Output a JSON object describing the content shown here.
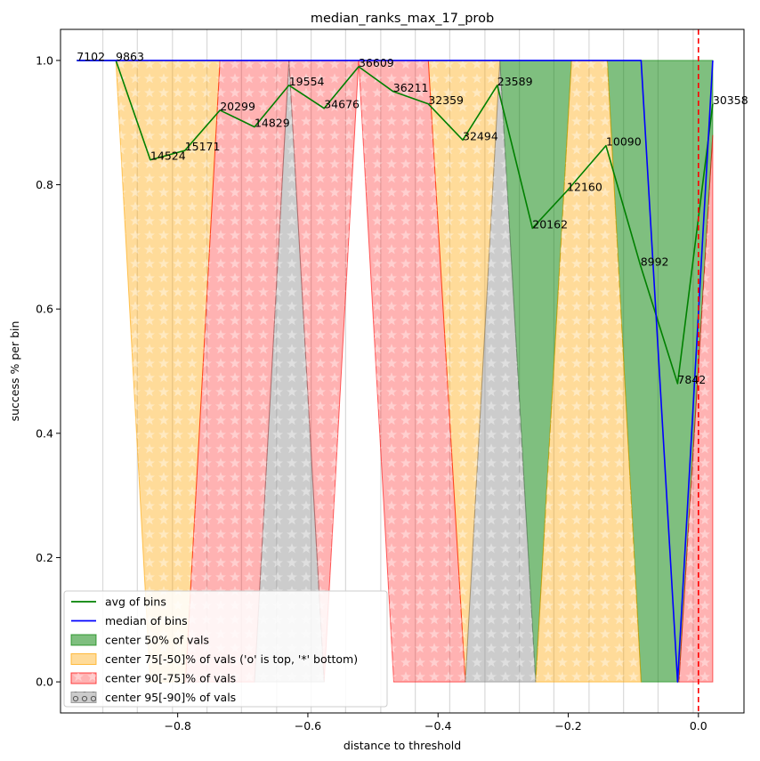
{
  "chart_data": {
    "type": "line",
    "title": "median_ranks_max_17_prob",
    "xlabel": "distance to threshold",
    "ylabel": "success % per bin",
    "xlim": [
      -0.98,
      0.07
    ],
    "ylim": [
      -0.05,
      1.05
    ],
    "x_ticks": [
      -0.8,
      -0.6,
      -0.4,
      -0.2,
      0.0
    ],
    "x_tick_labels": [
      "−0.8",
      "−0.6",
      "−0.4",
      "−0.2",
      "0.0"
    ],
    "y_ticks": [
      0.0,
      0.2,
      0.4,
      0.6,
      0.8,
      1.0
    ],
    "y_tick_labels": [
      "0.0",
      "0.2",
      "0.4",
      "0.6",
      "0.8",
      "1.0"
    ],
    "threshold_x": 0.0,
    "bin_lines_x": [
      -0.915,
      -0.862,
      -0.808,
      -0.755,
      -0.702,
      -0.648,
      -0.595,
      -0.542,
      -0.488,
      -0.435,
      -0.382,
      -0.328,
      -0.275,
      -0.222,
      -0.168,
      -0.115,
      -0.062,
      -0.008
    ],
    "avg_series": {
      "name": "avg of bins",
      "color": "#008000",
      "x": [
        -0.955,
        -0.895,
        -0.842,
        -0.789,
        -0.735,
        -0.682,
        -0.629,
        -0.575,
        -0.522,
        -0.469,
        -0.415,
        -0.362,
        -0.309,
        -0.255,
        -0.202,
        -0.142,
        -0.089,
        -0.032,
        0.022
      ],
      "y": [
        1.0,
        1.0,
        0.84,
        0.855,
        0.92,
        0.893,
        0.96,
        0.923,
        0.99,
        0.95,
        0.93,
        0.872,
        0.96,
        0.73,
        0.79,
        0.863,
        0.67,
        0.48,
        0.93
      ]
    },
    "median_series": {
      "name": "median of bins",
      "color": "#0000ff",
      "x": [
        -0.955,
        -0.088,
        -0.032,
        0.022
      ],
      "y": [
        1.0,
        1.0,
        0.0,
        1.0
      ]
    },
    "point_labels": [
      {
        "x": -0.955,
        "y": 1.0,
        "text": "7102"
      },
      {
        "x": -0.895,
        "y": 1.0,
        "text": "9863"
      },
      {
        "x": -0.842,
        "y": 0.84,
        "text": "14524"
      },
      {
        "x": -0.789,
        "y": 0.855,
        "text": "15171"
      },
      {
        "x": -0.735,
        "y": 0.92,
        "text": "20299"
      },
      {
        "x": -0.682,
        "y": 0.893,
        "text": "14829"
      },
      {
        "x": -0.629,
        "y": 0.96,
        "text": "19554"
      },
      {
        "x": -0.575,
        "y": 0.923,
        "text": "34676"
      },
      {
        "x": -0.522,
        "y": 0.99,
        "text": "36609"
      },
      {
        "x": -0.469,
        "y": 0.95,
        "text": "36211"
      },
      {
        "x": -0.415,
        "y": 0.93,
        "text": "32359"
      },
      {
        "x": -0.362,
        "y": 0.872,
        "text": "32494"
      },
      {
        "x": -0.309,
        "y": 0.96,
        "text": "23589"
      },
      {
        "x": -0.255,
        "y": 0.73,
        "text": "20162"
      },
      {
        "x": -0.202,
        "y": 0.79,
        "text": "12160"
      },
      {
        "x": -0.142,
        "y": 0.863,
        "text": "10090"
      },
      {
        "x": -0.089,
        "y": 0.67,
        "text": "8992"
      },
      {
        "x": -0.032,
        "y": 0.48,
        "text": "7842"
      },
      {
        "x": 0.022,
        "y": 0.93,
        "text": "30358"
      }
    ],
    "bands": [
      {
        "id": "center-50",
        "color": "#008000",
        "alpha": 0.5,
        "hatch": "none",
        "polygons": [
          [
            [
              -0.305,
              1.0
            ],
            [
              -0.195,
              1.0
            ],
            [
              -0.25,
              0.0
            ]
          ],
          [
            [
              -0.14,
              1.0
            ],
            [
              0.022,
              1.0
            ],
            [
              0.022,
              0.88
            ],
            [
              -0.03,
              0.0
            ],
            [
              -0.088,
              0.0
            ]
          ]
        ]
      },
      {
        "id": "center-75",
        "color": "#ffa500",
        "alpha": 0.4,
        "hatch": "star",
        "polygons": [
          [
            [
              -0.895,
              1.0
            ],
            [
              -0.735,
              1.0
            ],
            [
              -0.788,
              0.0
            ],
            [
              -0.842,
              0.0
            ]
          ],
          [
            [
              -0.415,
              1.0
            ],
            [
              -0.305,
              1.0
            ],
            [
              -0.358,
              0.0
            ]
          ],
          [
            [
              -0.195,
              1.0
            ],
            [
              -0.14,
              1.0
            ],
            [
              -0.088,
              0.0
            ],
            [
              -0.25,
              0.0
            ]
          ]
        ]
      },
      {
        "id": "center-90",
        "color": "#ff0000",
        "alpha": 0.3,
        "hatch": "star",
        "polygons": [
          [
            [
              -0.735,
              1.0
            ],
            [
              -0.629,
              1.0
            ],
            [
              -0.682,
              0.0
            ],
            [
              -0.788,
              0.0
            ]
          ],
          [
            [
              -0.629,
              1.0
            ],
            [
              -0.522,
              1.0
            ],
            [
              -0.575,
              0.0
            ]
          ],
          [
            [
              -0.522,
              1.0
            ],
            [
              -0.415,
              1.0
            ],
            [
              -0.358,
              0.0
            ],
            [
              -0.468,
              0.0
            ]
          ],
          [
            [
              0.022,
              0.88
            ],
            [
              0.022,
              0.0
            ],
            [
              -0.03,
              0.0
            ]
          ]
        ]
      },
      {
        "id": "center-95",
        "color": "#808080",
        "alpha": 0.4,
        "hatch": "star",
        "polygons": [
          [
            [
              -0.629,
              1.0
            ],
            [
              -0.682,
              0.0
            ],
            [
              -0.575,
              0.0
            ]
          ],
          [
            [
              -0.305,
              1.0
            ],
            [
              -0.358,
              0.0
            ],
            [
              -0.25,
              0.0
            ]
          ]
        ]
      }
    ],
    "legend": {
      "position": "lower-left",
      "entries": [
        {
          "label": "avg of bins",
          "kind": "line",
          "color": "#008000"
        },
        {
          "label": "median of bins",
          "kind": "line",
          "color": "#0000ff"
        },
        {
          "label": "center 50% of vals",
          "kind": "patch",
          "color": "#008000",
          "hatch": "none"
        },
        {
          "label": "center 75[-50]% of vals ('o' is top, '*' bottom)",
          "kind": "patch",
          "color": "#ffa500",
          "hatch": "none"
        },
        {
          "label": "center 90[-75]% of vals",
          "kind": "patch",
          "color": "#ff0000",
          "hatch": "star"
        },
        {
          "label": "center 95[-90]% of vals",
          "kind": "patch",
          "color": "#808080",
          "hatch": "circle"
        }
      ]
    }
  }
}
